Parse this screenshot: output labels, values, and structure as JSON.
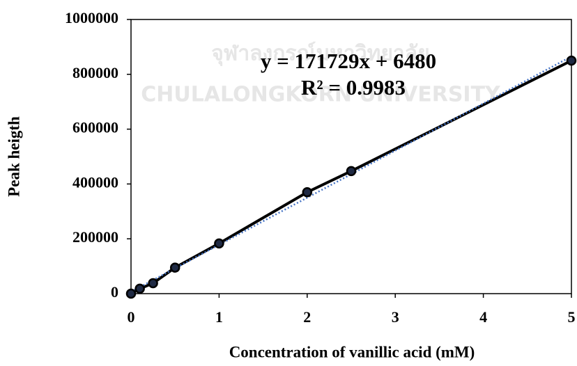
{
  "chart_data": {
    "type": "scatter",
    "watermark": [
      "จุฬาลงกรณ์มหาวิทยาลัย",
      "CHULALONGKORN UNIVERSITY"
    ],
    "x_label": "Concentration of vanillic acid (mM)",
    "y_label": "Peak heigth",
    "annotations": [
      "y = 171729x + 6480",
      "R² = 0.9983"
    ],
    "x": [
      0,
      0.1,
      0.25,
      0.5,
      1,
      2,
      2.5,
      5
    ],
    "series": [
      {
        "color": "#000000",
        "marker_color": "#1f2a44",
        "values": [
          0,
          18000,
          38000,
          95000,
          183000,
          370000,
          447000,
          850000
        ]
      }
    ],
    "trendline": {
      "slope": 171729,
      "intercept": 6480,
      "color": "#4472c4",
      "style": "dotted"
    },
    "xlim": [
      0,
      5
    ],
    "xticks": [
      0,
      1,
      2,
      3,
      4,
      5
    ],
    "ylim": [
      0,
      1000000
    ],
    "yticks": [
      0,
      200000,
      400000,
      600000,
      800000,
      1000000
    ],
    "grid": false
  }
}
